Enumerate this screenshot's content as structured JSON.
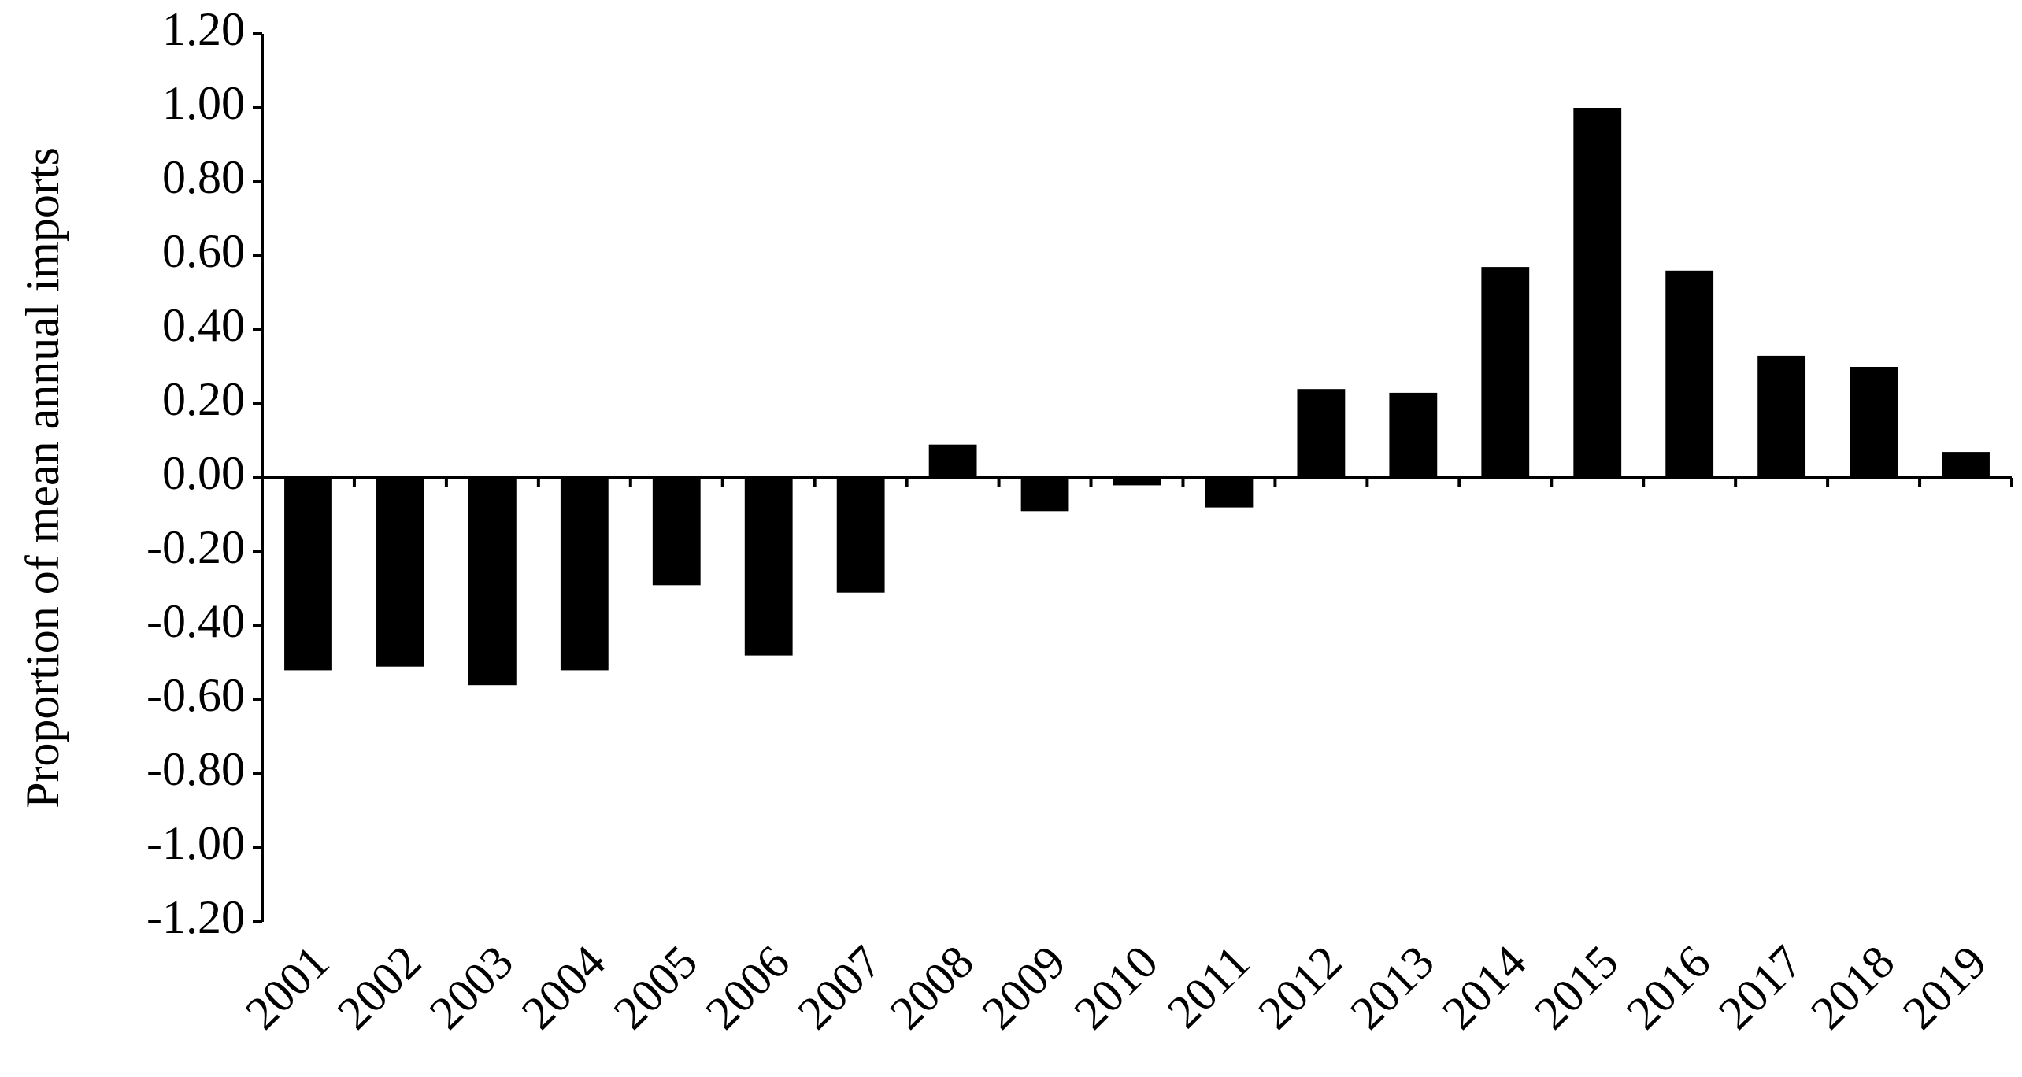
{
  "chart_data": {
    "type": "bar",
    "y_label": "Proportion of mean annual imports",
    "categories": [
      "2001",
      "2002",
      "2003",
      "2004",
      "2005",
      "2006",
      "2007",
      "2008",
      "2009",
      "2010",
      "2011",
      "2012",
      "2013",
      "2014",
      "2015",
      "2016",
      "2017",
      "2018",
      "2019"
    ],
    "values": [
      -0.52,
      -0.51,
      -0.56,
      -0.52,
      -0.29,
      -0.48,
      -0.31,
      0.09,
      -0.09,
      -0.02,
      -0.08,
      0.24,
      0.23,
      0.57,
      1.0,
      0.56,
      0.33,
      0.3,
      0.07
    ],
    "color": "#000000",
    "ylim": [
      -1.2,
      1.2
    ],
    "yticks": [
      {
        "value": -1.2,
        "label": "-1.20"
      },
      {
        "value": -1.0,
        "label": "-1.00"
      },
      {
        "value": -0.8,
        "label": "-0.80"
      },
      {
        "value": -0.6,
        "label": "-0.60"
      },
      {
        "value": -0.4,
        "label": "-0.40"
      },
      {
        "value": -0.2,
        "label": "-0.20"
      },
      {
        "value": 0,
        "label": "0.00"
      },
      {
        "value": 0.2,
        "label": "0.20"
      },
      {
        "value": 0.4,
        "label": "0.40"
      },
      {
        "value": 0.6,
        "label": "0.60"
      },
      {
        "value": 0.8,
        "label": "0.80"
      },
      {
        "value": 1.0,
        "label": "1.00"
      },
      {
        "value": 1.2,
        "label": "1.20"
      }
    ],
    "grid": false
  }
}
